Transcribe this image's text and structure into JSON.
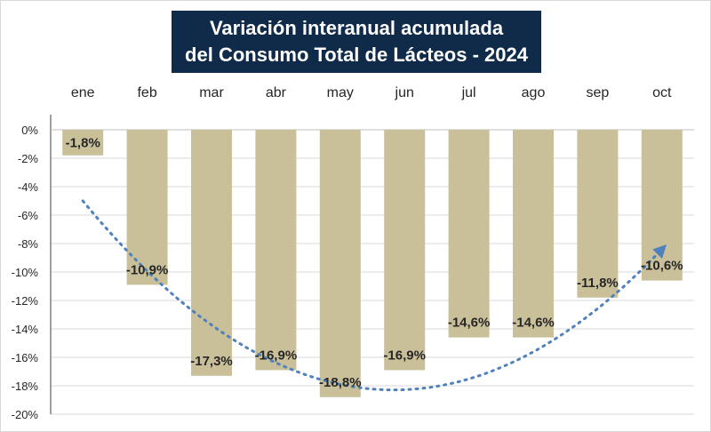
{
  "chart_data": {
    "type": "bar",
    "title": "Variación interanual acumulada",
    "subtitle": "del Consumo Total de Lácteos - 2024",
    "categories": [
      "ene",
      "feb",
      "mar",
      "abr",
      "may",
      "jun",
      "jul",
      "ago",
      "sep",
      "oct"
    ],
    "values": [
      -1.8,
      -10.9,
      -17.3,
      -16.9,
      -18.8,
      -16.9,
      -14.6,
      -14.6,
      -11.8,
      -10.6
    ],
    "data_labels": [
      "-1,8%",
      "-10,9%",
      "-17,3%",
      "-16,9%",
      "-18,8%",
      "-16,9%",
      "-14,6%",
      "-14,6%",
      "-11,8%",
      "-10,6%"
    ],
    "ylim": [
      -20,
      0
    ],
    "yticks": [
      0,
      -2,
      -4,
      -6,
      -8,
      -10,
      -12,
      -14,
      -16,
      -18,
      -20
    ],
    "ytick_labels": [
      "0%",
      "-2%",
      "-4%",
      "-6%",
      "-8%",
      "-10%",
      "-12%",
      "-14%",
      "-16%",
      "-18%",
      "-20%"
    ],
    "xlabel": "",
    "ylabel": "",
    "category_axis_position": "top",
    "grid": true,
    "legend": "none",
    "trendline": {
      "type": "polynomial",
      "style": "dotted",
      "arrow": true,
      "points": [
        {
          "x": "ene",
          "y": -5
        },
        {
          "x": "may",
          "y": -17.9
        },
        {
          "x": "oct",
          "y": -8.4
        }
      ]
    },
    "colors": {
      "bar": "#c9c09a",
      "title_background": "#102a4a",
      "title_text": "#ffffff",
      "trendline": "#4f81bd",
      "grid": "#d9d9d9",
      "text": "#262626"
    }
  }
}
